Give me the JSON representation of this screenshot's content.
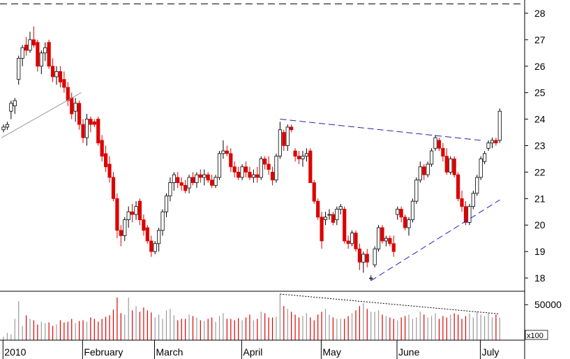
{
  "chart_data": [
    {
      "type": "candlestick",
      "title": "",
      "ylim": [
        17.5,
        28.5
      ],
      "yticks": [
        18,
        19,
        20,
        21,
        22,
        23,
        24,
        25,
        26,
        27,
        28
      ],
      "up_color": "#ffffff",
      "down_color": "#dd0000",
      "dashed_ref_level": 28.35,
      "months": [
        {
          "label": "2010",
          "start": 0
        },
        {
          "label": "February",
          "start": 21
        },
        {
          "label": "March",
          "start": 40
        },
        {
          "label": "April",
          "start": 63
        },
        {
          "label": "May",
          "start": 84
        },
        {
          "label": "June",
          "start": 104
        },
        {
          "label": "July",
          "start": 126
        }
      ],
      "series": [
        {
          "o": 23.6,
          "h": 23.8,
          "l": 23.5,
          "c": 23.7
        },
        {
          "o": 23.7,
          "h": 23.9,
          "l": 23.6,
          "c": 23.8
        },
        {
          "o": 24.3,
          "h": 24.7,
          "l": 24.0,
          "c": 24.6
        },
        {
          "o": 24.5,
          "h": 24.8,
          "l": 24.2,
          "c": 24.7
        },
        {
          "o": 25.5,
          "h": 26.4,
          "l": 25.3,
          "c": 26.3
        },
        {
          "o": 26.3,
          "h": 26.8,
          "l": 26.0,
          "c": 26.7
        },
        {
          "o": 26.8,
          "h": 27.1,
          "l": 26.4,
          "c": 26.6
        },
        {
          "o": 26.6,
          "h": 27.3,
          "l": 26.5,
          "c": 27.0
        },
        {
          "o": 27.0,
          "h": 27.5,
          "l": 26.7,
          "c": 26.8
        },
        {
          "o": 26.9,
          "h": 27.0,
          "l": 25.8,
          "c": 26.0
        },
        {
          "o": 26.0,
          "h": 26.6,
          "l": 25.7,
          "c": 26.5
        },
        {
          "o": 26.5,
          "h": 26.9,
          "l": 26.2,
          "c": 26.7
        },
        {
          "o": 26.9,
          "h": 27.0,
          "l": 25.9,
          "c": 26.0
        },
        {
          "o": 26.0,
          "h": 26.3,
          "l": 25.4,
          "c": 25.6
        },
        {
          "o": 25.6,
          "h": 26.0,
          "l": 25.3,
          "c": 25.8
        },
        {
          "o": 25.8,
          "h": 26.0,
          "l": 25.2,
          "c": 25.4
        },
        {
          "o": 25.5,
          "h": 25.8,
          "l": 25.0,
          "c": 25.2
        },
        {
          "o": 25.2,
          "h": 25.4,
          "l": 24.5,
          "c": 24.7
        },
        {
          "o": 24.8,
          "h": 25.0,
          "l": 24.0,
          "c": 24.2
        },
        {
          "o": 24.3,
          "h": 24.8,
          "l": 23.9,
          "c": 24.6
        },
        {
          "o": 24.6,
          "h": 24.7,
          "l": 23.6,
          "c": 23.8
        },
        {
          "o": 23.8,
          "h": 24.0,
          "l": 23.1,
          "c": 23.3
        },
        {
          "o": 23.3,
          "h": 24.2,
          "l": 23.0,
          "c": 24.0
        },
        {
          "o": 24.0,
          "h": 24.1,
          "l": 23.5,
          "c": 23.8
        },
        {
          "o": 23.9,
          "h": 24.0,
          "l": 23.7,
          "c": 23.8
        },
        {
          "o": 24.0,
          "h": 24.1,
          "l": 23.0,
          "c": 23.1
        },
        {
          "o": 23.2,
          "h": 23.4,
          "l": 22.4,
          "c": 22.6
        },
        {
          "o": 22.7,
          "h": 23.0,
          "l": 22.0,
          "c": 22.2
        },
        {
          "o": 22.3,
          "h": 22.6,
          "l": 21.6,
          "c": 21.8
        },
        {
          "o": 21.8,
          "h": 22.0,
          "l": 20.9,
          "c": 21.0
        },
        {
          "o": 21.0,
          "h": 21.2,
          "l": 19.5,
          "c": 19.8
        },
        {
          "o": 19.8,
          "h": 20.0,
          "l": 19.2,
          "c": 19.6
        },
        {
          "o": 19.6,
          "h": 20.3,
          "l": 19.4,
          "c": 20.2
        },
        {
          "o": 20.2,
          "h": 20.7,
          "l": 19.9,
          "c": 20.5
        },
        {
          "o": 20.5,
          "h": 20.8,
          "l": 20.1,
          "c": 20.4
        },
        {
          "o": 20.4,
          "h": 20.9,
          "l": 20.2,
          "c": 20.7
        },
        {
          "o": 20.9,
          "h": 21.0,
          "l": 20.0,
          "c": 20.2
        },
        {
          "o": 20.2,
          "h": 20.4,
          "l": 19.6,
          "c": 19.8
        },
        {
          "o": 19.9,
          "h": 20.0,
          "l": 19.3,
          "c": 19.4
        },
        {
          "o": 19.4,
          "h": 19.6,
          "l": 18.8,
          "c": 19.0
        },
        {
          "o": 19.0,
          "h": 19.4,
          "l": 18.9,
          "c": 19.3
        },
        {
          "o": 19.3,
          "h": 19.9,
          "l": 19.0,
          "c": 19.8
        },
        {
          "o": 19.8,
          "h": 20.6,
          "l": 19.6,
          "c": 20.5
        },
        {
          "o": 20.5,
          "h": 21.2,
          "l": 20.3,
          "c": 21.1
        },
        {
          "o": 21.1,
          "h": 21.8,
          "l": 20.9,
          "c": 21.6
        },
        {
          "o": 21.6,
          "h": 22.0,
          "l": 21.3,
          "c": 21.9
        },
        {
          "o": 21.8,
          "h": 22.0,
          "l": 21.4,
          "c": 21.6
        },
        {
          "o": 21.6,
          "h": 21.8,
          "l": 21.3,
          "c": 21.5
        },
        {
          "o": 21.5,
          "h": 21.7,
          "l": 21.2,
          "c": 21.3
        },
        {
          "o": 21.4,
          "h": 21.9,
          "l": 21.2,
          "c": 21.8
        },
        {
          "o": 21.8,
          "h": 22.0,
          "l": 21.5,
          "c": 21.6
        },
        {
          "o": 21.6,
          "h": 22.0,
          "l": 21.4,
          "c": 21.9
        },
        {
          "o": 21.9,
          "h": 22.1,
          "l": 21.6,
          "c": 21.8
        },
        {
          "o": 21.8,
          "h": 22.1,
          "l": 21.5,
          "c": 21.9
        },
        {
          "o": 21.9,
          "h": 22.0,
          "l": 21.6,
          "c": 21.7
        },
        {
          "o": 21.7,
          "h": 21.9,
          "l": 21.4,
          "c": 21.5
        },
        {
          "o": 21.5,
          "h": 21.9,
          "l": 21.4,
          "c": 21.8
        },
        {
          "o": 21.8,
          "h": 22.8,
          "l": 21.7,
          "c": 22.7
        },
        {
          "o": 22.7,
          "h": 23.2,
          "l": 22.5,
          "c": 22.8
        },
        {
          "o": 22.8,
          "h": 23.0,
          "l": 22.6,
          "c": 22.7
        },
        {
          "o": 22.7,
          "h": 22.9,
          "l": 22.0,
          "c": 22.2
        },
        {
          "o": 22.2,
          "h": 22.4,
          "l": 21.8,
          "c": 22.0
        },
        {
          "o": 22.0,
          "h": 22.2,
          "l": 21.7,
          "c": 21.8
        },
        {
          "o": 21.8,
          "h": 22.3,
          "l": 21.7,
          "c": 22.2
        },
        {
          "o": 22.2,
          "h": 22.4,
          "l": 21.8,
          "c": 22.0
        },
        {
          "o": 22.0,
          "h": 22.2,
          "l": 21.7,
          "c": 21.8
        },
        {
          "o": 21.8,
          "h": 22.1,
          "l": 21.6,
          "c": 21.9
        },
        {
          "o": 21.9,
          "h": 22.2,
          "l": 21.6,
          "c": 21.8
        },
        {
          "o": 21.8,
          "h": 22.6,
          "l": 21.7,
          "c": 22.5
        },
        {
          "o": 22.5,
          "h": 22.6,
          "l": 22.1,
          "c": 22.3
        },
        {
          "o": 22.3,
          "h": 22.6,
          "l": 21.9,
          "c": 22.1
        },
        {
          "o": 22.0,
          "h": 22.2,
          "l": 21.5,
          "c": 21.7
        },
        {
          "o": 21.7,
          "h": 22.7,
          "l": 21.6,
          "c": 22.6
        },
        {
          "o": 22.6,
          "h": 23.9,
          "l": 22.5,
          "c": 23.6
        },
        {
          "o": 23.5,
          "h": 23.6,
          "l": 22.8,
          "c": 23.0
        },
        {
          "o": 23.0,
          "h": 23.8,
          "l": 22.8,
          "c": 23.7
        },
        {
          "o": 23.7,
          "h": 23.8,
          "l": 23.5,
          "c": 23.6
        },
        {
          "o": 22.8,
          "h": 22.9,
          "l": 22.4,
          "c": 22.6
        },
        {
          "o": 22.6,
          "h": 22.8,
          "l": 22.3,
          "c": 22.5
        },
        {
          "o": 22.5,
          "h": 22.8,
          "l": 22.2,
          "c": 22.6
        },
        {
          "o": 22.6,
          "h": 22.9,
          "l": 22.4,
          "c": 22.7
        },
        {
          "o": 22.8,
          "h": 22.9,
          "l": 21.6,
          "c": 21.6
        },
        {
          "o": 21.6,
          "h": 21.7,
          "l": 20.8,
          "c": 20.9
        },
        {
          "o": 20.9,
          "h": 21.0,
          "l": 20.2,
          "c": 20.3
        },
        {
          "o": 20.3,
          "h": 20.5,
          "l": 19.1,
          "c": 19.4
        },
        {
          "o": 20.2,
          "h": 20.5,
          "l": 20.0,
          "c": 20.3
        },
        {
          "o": 20.4,
          "h": 20.6,
          "l": 20.2,
          "c": 20.4
        },
        {
          "o": 20.4,
          "h": 20.5,
          "l": 20.0,
          "c": 20.1
        },
        {
          "o": 20.2,
          "h": 20.7,
          "l": 20.0,
          "c": 20.6
        },
        {
          "o": 20.6,
          "h": 20.8,
          "l": 20.4,
          "c": 20.7
        },
        {
          "o": 20.6,
          "h": 20.7,
          "l": 19.3,
          "c": 19.4
        },
        {
          "o": 19.4,
          "h": 19.6,
          "l": 19.1,
          "c": 19.3
        },
        {
          "o": 19.3,
          "h": 19.8,
          "l": 19.2,
          "c": 19.7
        },
        {
          "o": 19.7,
          "h": 19.8,
          "l": 19.0,
          "c": 19.1
        },
        {
          "o": 19.1,
          "h": 19.3,
          "l": 18.3,
          "c": 18.6
        },
        {
          "o": 18.6,
          "h": 19.0,
          "l": 18.2,
          "c": 18.9
        },
        {
          "o": 18.9,
          "h": 19.1,
          "l": 18.4,
          "c": 18.6
        },
        {
          "o": 18.0,
          "h": 18.1,
          "l": 17.9,
          "c": 18.0
        },
        {
          "o": 18.5,
          "h": 19.2,
          "l": 18.4,
          "c": 19.1
        },
        {
          "o": 19.1,
          "h": 20.0,
          "l": 19.0,
          "c": 19.9
        },
        {
          "o": 19.9,
          "h": 20.0,
          "l": 19.3,
          "c": 19.4
        },
        {
          "o": 19.4,
          "h": 19.6,
          "l": 19.2,
          "c": 19.5
        },
        {
          "o": 19.5,
          "h": 19.6,
          "l": 19.2,
          "c": 19.3
        },
        {
          "o": 19.3,
          "h": 19.6,
          "l": 18.8,
          "c": 19.0
        },
        {
          "o": 20.4,
          "h": 20.7,
          "l": 20.2,
          "c": 20.6
        },
        {
          "o": 20.6,
          "h": 20.7,
          "l": 20.1,
          "c": 20.3
        },
        {
          "o": 20.3,
          "h": 20.4,
          "l": 19.8,
          "c": 19.9
        },
        {
          "o": 19.9,
          "h": 20.3,
          "l": 19.6,
          "c": 20.2
        },
        {
          "o": 20.2,
          "h": 21.0,
          "l": 20.1,
          "c": 20.9
        },
        {
          "o": 20.9,
          "h": 21.8,
          "l": 20.8,
          "c": 21.7
        },
        {
          "o": 21.7,
          "h": 22.4,
          "l": 21.6,
          "c": 22.2
        },
        {
          "o": 22.2,
          "h": 22.3,
          "l": 21.7,
          "c": 21.9
        },
        {
          "o": 21.9,
          "h": 22.4,
          "l": 21.8,
          "c": 22.3
        },
        {
          "o": 22.3,
          "h": 22.9,
          "l": 22.2,
          "c": 22.8
        },
        {
          "o": 22.9,
          "h": 23.4,
          "l": 22.8,
          "c": 23.3
        },
        {
          "o": 23.2,
          "h": 23.3,
          "l": 22.8,
          "c": 22.9
        },
        {
          "o": 22.9,
          "h": 23.1,
          "l": 22.4,
          "c": 22.6
        },
        {
          "o": 22.6,
          "h": 22.9,
          "l": 21.9,
          "c": 22.0
        },
        {
          "o": 22.0,
          "h": 22.6,
          "l": 21.9,
          "c": 22.5
        },
        {
          "o": 22.5,
          "h": 22.6,
          "l": 21.8,
          "c": 21.9
        },
        {
          "o": 21.9,
          "h": 22.0,
          "l": 20.9,
          "c": 21.0
        },
        {
          "o": 21.0,
          "h": 21.3,
          "l": 20.5,
          "c": 20.7
        },
        {
          "o": 20.7,
          "h": 20.9,
          "l": 20.0,
          "c": 20.1
        },
        {
          "o": 20.1,
          "h": 20.8,
          "l": 20.0,
          "c": 20.7
        },
        {
          "o": 20.7,
          "h": 21.3,
          "l": 20.6,
          "c": 21.2
        },
        {
          "o": 21.2,
          "h": 21.9,
          "l": 21.1,
          "c": 21.8
        },
        {
          "o": 21.8,
          "h": 22.6,
          "l": 21.7,
          "c": 22.5
        },
        {
          "o": 22.4,
          "h": 22.8,
          "l": 22.3,
          "c": 22.7
        },
        {
          "o": 22.9,
          "h": 23.2,
          "l": 22.8,
          "c": 23.1
        },
        {
          "o": 23.1,
          "h": 23.3,
          "l": 22.9,
          "c": 23.2
        },
        {
          "o": 23.2,
          "h": 23.3,
          "l": 23.0,
          "c": 23.1
        },
        {
          "o": 23.2,
          "h": 24.4,
          "l": 23.1,
          "c": 24.3
        }
      ],
      "trendlines": [
        {
          "name": "",
          "color": "#999999",
          "style": "solid",
          "from": [
            -0.5,
            23.3
          ],
          "to": [
            20.5,
            25.0
          ]
        },
        {
          "name": "",
          "color": "#2222aa",
          "style": "dashed",
          "from": [
            73,
            24.0
          ],
          "to": [
            126,
            23.2
          ]
        },
        {
          "name": "",
          "color": "#2222cc",
          "style": "dashed",
          "from": [
            97,
            17.9
          ],
          "to": [
            131,
            20.95
          ]
        }
      ]
    },
    {
      "type": "bar",
      "title": "",
      "ylabel_multiplier": "x100",
      "yticks": [
        50000
      ],
      "ylim": [
        0,
        65000
      ],
      "colors": {
        "down": "#dd0000",
        "up": "#999999"
      },
      "trendline": {
        "style": "dotted",
        "color": "#000000",
        "from": [
          73,
          65000
        ],
        "to": [
          131,
          37000
        ]
      },
      "values": [
        5000,
        10000,
        8000,
        30000,
        55000,
        20000,
        35000,
        30000,
        28000,
        22000,
        26000,
        24000,
        25000,
        20000,
        22000,
        28000,
        25000,
        26000,
        30000,
        24000,
        27000,
        28000,
        26000,
        32000,
        30000,
        26000,
        30000,
        33000,
        35000,
        43000,
        60000,
        38000,
        36000,
        60000,
        42000,
        48000,
        40000,
        46000,
        42000,
        39000,
        32000,
        36000,
        30000,
        42000,
        44000,
        35000,
        28000,
        30000,
        30000,
        36000,
        34000,
        32000,
        28000,
        27000,
        30000,
        32000,
        26000,
        34000,
        38000,
        30000,
        30000,
        28000,
        31000,
        28000,
        32000,
        36000,
        28000,
        30000,
        40000,
        38000,
        32000,
        32000,
        33000,
        65000,
        48000,
        44000,
        40000,
        36000,
        32000,
        34000,
        38000,
        32000,
        28000,
        36000,
        40000,
        44000,
        36000,
        32000,
        30000,
        30000,
        30000,
        34000,
        38000,
        42000,
        48000,
        52000,
        44000,
        40000,
        40000,
        42000,
        36000,
        34000,
        32000,
        30000,
        28000,
        32000,
        34000,
        36000,
        30000,
        32000,
        40000,
        36000,
        32000,
        34000,
        38000,
        30000,
        34000,
        32000,
        36000,
        38000,
        36000,
        30000,
        34000,
        38000,
        32000,
        40000,
        36000,
        34000,
        38000,
        32000,
        36000,
        32000
      ]
    }
  ]
}
